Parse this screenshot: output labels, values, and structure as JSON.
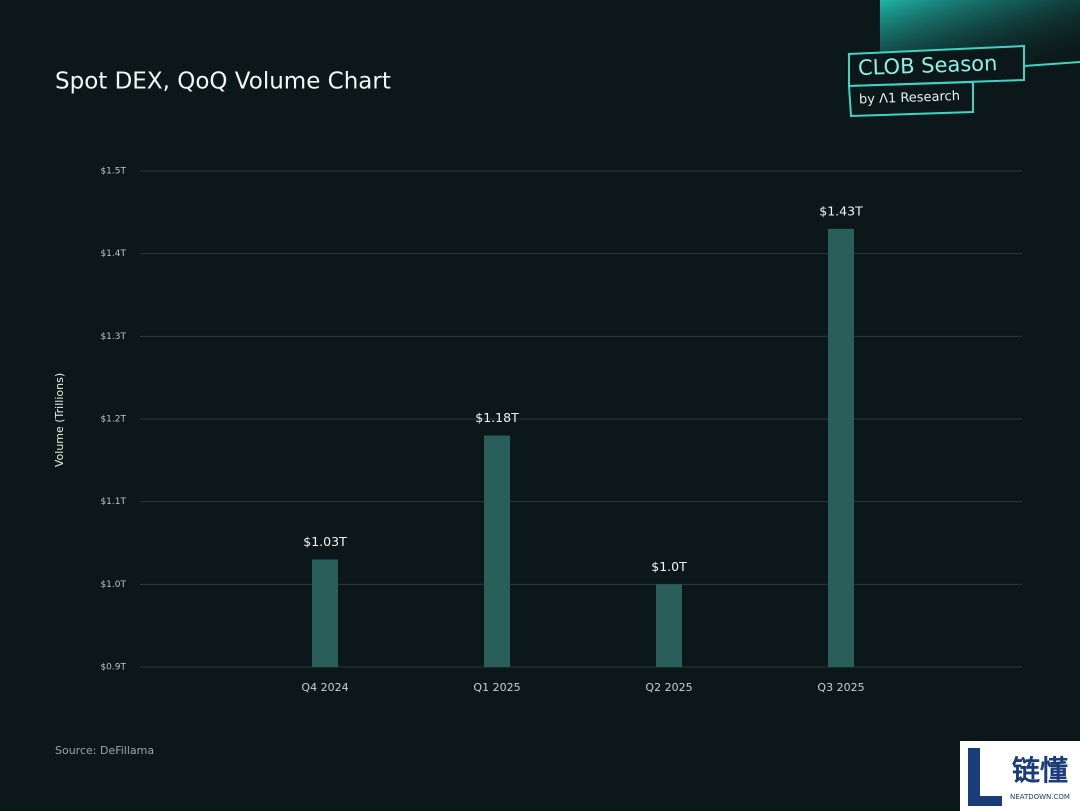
{
  "chart_data": {
    "type": "bar",
    "title": "Spot DEX, QoQ Volume Chart",
    "y_label": "Volume (Trillions)",
    "source": "Source: DeFillama",
    "categories": [
      "Q4 2024",
      "Q1 2025",
      "Q2 2025",
      "Q3 2025"
    ],
    "values": [
      1.03,
      1.18,
      1.0,
      1.43
    ],
    "value_labels": [
      "$1.03T",
      "$1.18T",
      "$1.0T",
      "$1.43T"
    ],
    "color": "#2a5e5b",
    "ylim": [
      0.9,
      1.5
    ],
    "yticks": [
      {
        "value": 0.9,
        "label": "$0.9T"
      },
      {
        "value": 1.0,
        "label": "$1.0T"
      },
      {
        "value": 1.1,
        "label": "$1.1T"
      },
      {
        "value": 1.2,
        "label": "$1.2T"
      },
      {
        "value": 1.3,
        "label": "$1.3T"
      },
      {
        "value": 1.4,
        "label": "$1.4T"
      },
      {
        "value": 1.5,
        "label": "$1.5T"
      }
    ],
    "grid": true
  },
  "badge": {
    "title": "CLOB Season",
    "subtitle": "by Λ1 Research"
  },
  "watermark": {
    "text": "链懂",
    "sub": "NEATDOWN.COM"
  }
}
